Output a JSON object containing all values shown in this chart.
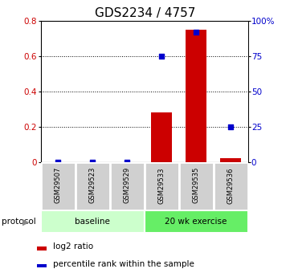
{
  "title": "GDS2234 / 4757",
  "samples": [
    "GSM29507",
    "GSM29523",
    "GSM29529",
    "GSM29533",
    "GSM29535",
    "GSM29536"
  ],
  "log2_ratio": [
    0.0,
    0.0,
    0.0,
    0.28,
    0.75,
    0.02
  ],
  "percentile_rank_pct": [
    0.0,
    0.0,
    0.0,
    75.0,
    92.0,
    25.0
  ],
  "ylim_left": [
    0,
    0.8
  ],
  "ylim_right": [
    0,
    100
  ],
  "yticks_left": [
    0,
    0.2,
    0.4,
    0.6,
    0.8
  ],
  "ytick_labels_left": [
    "0",
    "0.2",
    "0.4",
    "0.6",
    "0.8"
  ],
  "yticks_right": [
    0,
    25,
    50,
    75,
    100
  ],
  "ytick_labels_right": [
    "0",
    "25",
    "50",
    "75",
    "100%"
  ],
  "groups": [
    {
      "label": "baseline",
      "indices": [
        0,
        1,
        2
      ],
      "color": "#ccffcc"
    },
    {
      "label": "20 wk exercise",
      "indices": [
        3,
        4,
        5
      ],
      "color": "#66ee66"
    }
  ],
  "protocol_label": "protocol",
  "bar_color": "#cc0000",
  "dot_color": "#0000cc",
  "legend_bar_label": "log2 ratio",
  "legend_dot_label": "percentile rank within the sample",
  "title_fontsize": 11,
  "tick_label_color_left": "#cc0000",
  "tick_label_color_right": "#0000cc",
  "background_color": "#ffffff",
  "bar_width": 0.6,
  "dot_size": 18,
  "sample_box_color": "#d0d0d0",
  "sample_box_edge_color": "#ffffff"
}
